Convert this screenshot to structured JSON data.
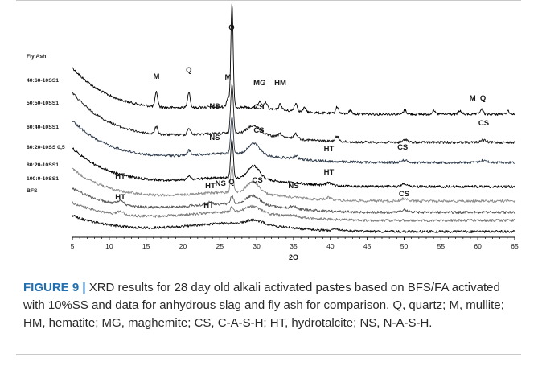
{
  "chart_data": {
    "type": "line",
    "xlabel": "2Θ",
    "ylabel": "",
    "title": "",
    "x_range": [
      5,
      65
    ],
    "x_ticks": [
      5,
      10,
      15,
      20,
      25,
      30,
      35,
      40,
      45,
      50,
      55,
      60,
      65
    ],
    "tick_labels": [
      "5",
      "10",
      "15",
      "20",
      "25",
      "30",
      "35",
      "40",
      "45",
      "50",
      "55",
      "60",
      "65"
    ],
    "grid": false,
    "series_labels": [
      "Fly Ash",
      "40:60-10SS1",
      "50:50-10SS1",
      "60:40-10SS1",
      "80:20-10SS 0,5",
      "80:20-10SS1",
      "100:0-10SS1",
      "BFS"
    ],
    "series_colors": [
      "#000000",
      "#1a1a1a",
      "#2e3a4a",
      "#000000",
      "#8a8a8a",
      "#555555",
      "#777777",
      "#111111"
    ],
    "annotations": [
      {
        "text": "Q",
        "x": 26.6
      },
      {
        "text": "M",
        "x": 16.4
      },
      {
        "text": "Q",
        "x": 20.8
      },
      {
        "text": "M",
        "x": 26.1
      },
      {
        "text": "MG",
        "x": 30.4
      },
      {
        "text": "HM",
        "x": 33.2
      },
      {
        "text": "M",
        "x": 59.3
      },
      {
        "text": "Q",
        "x": 60.7
      },
      {
        "text": "NS",
        "x": 24.3
      },
      {
        "text": "CS",
        "x": 30.3
      },
      {
        "text": "CS",
        "x": 60.8
      },
      {
        "text": "NS",
        "x": 24.3
      },
      {
        "text": "CS",
        "x": 30.3
      },
      {
        "text": "HT",
        "x": 39.8
      },
      {
        "text": "CS",
        "x": 49.8
      },
      {
        "text": "HT",
        "x": 39.8
      },
      {
        "text": "HT",
        "x": 11.5
      },
      {
        "text": "HT",
        "x": 23.7
      },
      {
        "text": "NS",
        "x": 25.1
      },
      {
        "text": "Q",
        "x": 26.6
      },
      {
        "text": "CS",
        "x": 30.1
      },
      {
        "text": "NS",
        "x": 35.0
      },
      {
        "text": "CS",
        "x": 50.0
      },
      {
        "text": "HT",
        "x": 11.5
      },
      {
        "text": "HT",
        "x": 23.5
      }
    ]
  },
  "caption": {
    "label": "FIGURE 9 |",
    "text": " XRD results for 28 day old alkali activated pastes based on BFS/FA activated with 10%SS and data for anhydrous slag and fly ash for comparison. Q, quartz; M, mullite; HM, hematite; MG, maghemite; CS, C-A-S-H; HT, hydrotalcite; NS, N-A-S-H."
  }
}
